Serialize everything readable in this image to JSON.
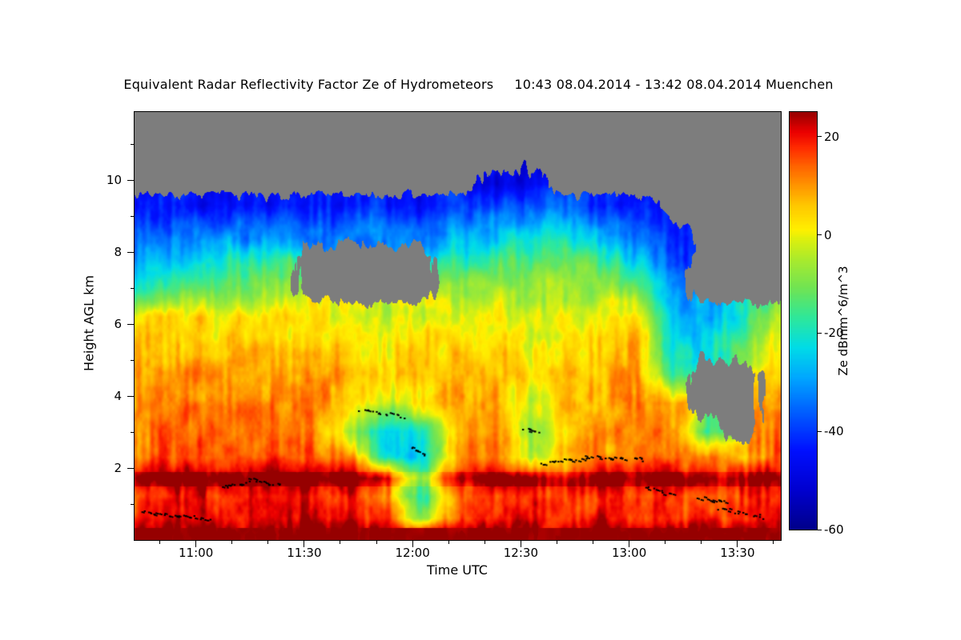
{
  "chart_data": {
    "type": "heatmap",
    "title": "Equivalent Radar Reflectivity Factor Ze of Hydrometeors",
    "subtitle": "10:43 08.04.2014 - 13:42 08.04.2014 Muenchen",
    "xlabel": "Time UTC",
    "ylabel": "Height AGL km",
    "colorbar_label": "Ze dBmm^6/m^3",
    "no_data_color": "#7d7d7d",
    "x_axis": {
      "total_minutes": 179,
      "major_ticks": [
        {
          "min": 17,
          "label": "11:00"
        },
        {
          "min": 47,
          "label": "11:30"
        },
        {
          "min": 77,
          "label": "12:00"
        },
        {
          "min": 107,
          "label": "12:30"
        },
        {
          "min": 137,
          "label": "13:00"
        },
        {
          "min": 167,
          "label": "13:30"
        }
      ],
      "minor_first_min": 7,
      "minor_step_min": 10
    },
    "y_axis": {
      "range": [
        0,
        11.9
      ],
      "major_ticks": [
        2,
        4,
        6,
        8,
        10
      ],
      "minor_ticks": [
        1,
        3,
        5,
        7,
        9,
        11
      ]
    },
    "colorbar": {
      "range": [
        -60,
        25
      ],
      "ticks": [
        20,
        0,
        -20,
        -40,
        -60
      ],
      "stops": [
        [
          -60,
          "#00008B"
        ],
        [
          -52,
          "#0000D0"
        ],
        [
          -44,
          "#0010FF"
        ],
        [
          -36,
          "#0060FF"
        ],
        [
          -29,
          "#00A8FF"
        ],
        [
          -23,
          "#00DCE8"
        ],
        [
          -17,
          "#2EE89C"
        ],
        [
          -11,
          "#6FE455"
        ],
        [
          -5,
          "#ABEB2D"
        ],
        [
          -1,
          "#DCF00F"
        ],
        [
          1,
          "#FFF000"
        ],
        [
          6,
          "#FFC800"
        ],
        [
          10,
          "#FF9600"
        ],
        [
          14,
          "#FF6400"
        ],
        [
          18,
          "#FF2800"
        ],
        [
          21,
          "#EB0000"
        ],
        [
          25,
          "#960000"
        ]
      ]
    },
    "grid": {
      "t": [
        0,
        0.056,
        0.111,
        0.167,
        0.222,
        0.278,
        0.333,
        0.389,
        0.444,
        0.5,
        0.556,
        0.611,
        0.667,
        0.722,
        0.778,
        0.833,
        0.889,
        0.944,
        1
      ],
      "h": [
        0.15,
        0.6,
        1.2,
        1.7,
        2.3,
        3.0,
        3.8,
        4.6,
        5.4,
        6.2,
        7.0,
        7.8,
        8.6,
        9.3,
        9.9,
        10.8
      ],
      "values": [
        [
          26,
          27,
          28,
          27,
          26,
          27,
          28,
          26,
          25,
          26,
          27,
          26,
          25,
          26,
          27,
          26,
          27,
          28,
          27
        ],
        [
          20,
          21,
          22,
          21,
          20,
          21,
          20,
          18,
          -8,
          16,
          19,
          20,
          18,
          19,
          20,
          19,
          17,
          20,
          22
        ],
        [
          18,
          19,
          20,
          19,
          18,
          19,
          18,
          12,
          -18,
          14,
          17,
          18,
          16,
          17,
          18,
          17,
          14,
          18,
          21
        ],
        [
          25,
          26,
          26,
          25,
          26,
          26,
          25,
          20,
          -12,
          22,
          25,
          24,
          18,
          23,
          24,
          23,
          20,
          24,
          26
        ],
        [
          14,
          15,
          16,
          15,
          14,
          15,
          13,
          -20,
          -24,
          10,
          13,
          -5,
          6,
          12,
          14,
          12,
          10,
          6,
          16
        ],
        [
          12,
          13,
          14,
          13,
          12,
          13,
          -5,
          -26,
          -20,
          8,
          11,
          -8,
          4,
          10,
          13,
          11,
          -15,
          null,
          14
        ],
        [
          11,
          12,
          12,
          12,
          11,
          12,
          5,
          -5,
          2,
          8,
          10,
          -5,
          6,
          9,
          12,
          8,
          null,
          null,
          10
        ],
        [
          9,
          10,
          10,
          10,
          9,
          10,
          7,
          4,
          6,
          7,
          8,
          2,
          5,
          8,
          10,
          -18,
          null,
          null,
          6
        ],
        [
          5,
          6,
          7,
          6,
          5,
          6,
          4,
          2,
          3,
          4,
          5,
          0,
          3,
          5,
          7,
          -22,
          -25,
          -10,
          2
        ],
        [
          2,
          3,
          3,
          2,
          1,
          2,
          0,
          -2,
          -1,
          0,
          2,
          -3,
          0,
          2,
          3,
          -28,
          -30,
          -20,
          -5
        ],
        [
          -18,
          -15,
          -12,
          -10,
          -8,
          null,
          null,
          null,
          null,
          -8,
          -5,
          -8,
          -6,
          -8,
          -12,
          -32,
          null,
          null,
          null
        ],
        [
          -30,
          -28,
          -22,
          -20,
          -18,
          null,
          null,
          null,
          null,
          -20,
          -15,
          -15,
          -12,
          -15,
          -25,
          -38,
          null,
          null,
          null
        ],
        [
          -38,
          -36,
          -34,
          -35,
          -33,
          -34,
          -32,
          -33,
          -35,
          -30,
          -28,
          -25,
          -25,
          -28,
          -35,
          -42,
          null,
          null,
          null
        ],
        [
          -45,
          -44,
          -46,
          -45,
          -44,
          -45,
          -43,
          -44,
          -46,
          -40,
          -38,
          -36,
          -38,
          -42,
          -45,
          null,
          null,
          null,
          null
        ],
        [
          null,
          null,
          null,
          null,
          null,
          null,
          null,
          null,
          null,
          null,
          -48,
          -48,
          null,
          null,
          null,
          null,
          null,
          null,
          null
        ],
        [
          null,
          null,
          null,
          null,
          null,
          null,
          null,
          null,
          null,
          null,
          null,
          null,
          null,
          null,
          null,
          null,
          null,
          null,
          null
        ]
      ]
    },
    "cloud_base_markers": [
      {
        "t0": 0.01,
        "t1": 0.12,
        "h0": 0.75,
        "h1": 0.55,
        "n": 26
      },
      {
        "t0": 0.135,
        "t1": 0.175,
        "h0": 1.45,
        "h1": 1.6,
        "n": 12
      },
      {
        "t0": 0.18,
        "t1": 0.225,
        "h0": 1.65,
        "h1": 1.5,
        "n": 12
      },
      {
        "t0": 0.35,
        "t1": 0.42,
        "h0": 3.6,
        "h1": 3.4,
        "n": 16
      },
      {
        "t0": 0.43,
        "t1": 0.45,
        "h0": 2.55,
        "h1": 2.35,
        "n": 7
      },
      {
        "t0": 0.605,
        "t1": 0.625,
        "h0": 3.05,
        "h1": 2.95,
        "n": 7
      },
      {
        "t0": 0.63,
        "t1": 0.7,
        "h0": 2.1,
        "h1": 2.25,
        "n": 18
      },
      {
        "t0": 0.7,
        "t1": 0.76,
        "h0": 2.3,
        "h1": 2.25,
        "n": 14
      },
      {
        "t0": 0.775,
        "t1": 0.79,
        "h0": 2.3,
        "h1": 2.2,
        "n": 5
      },
      {
        "t0": 0.79,
        "t1": 0.835,
        "h0": 1.45,
        "h1": 1.2,
        "n": 12
      },
      {
        "t0": 0.875,
        "t1": 0.915,
        "h0": 1.15,
        "h1": 1.0,
        "n": 12
      },
      {
        "t0": 0.905,
        "t1": 0.975,
        "h0": 0.85,
        "h1": 0.6,
        "n": 16
      }
    ]
  }
}
